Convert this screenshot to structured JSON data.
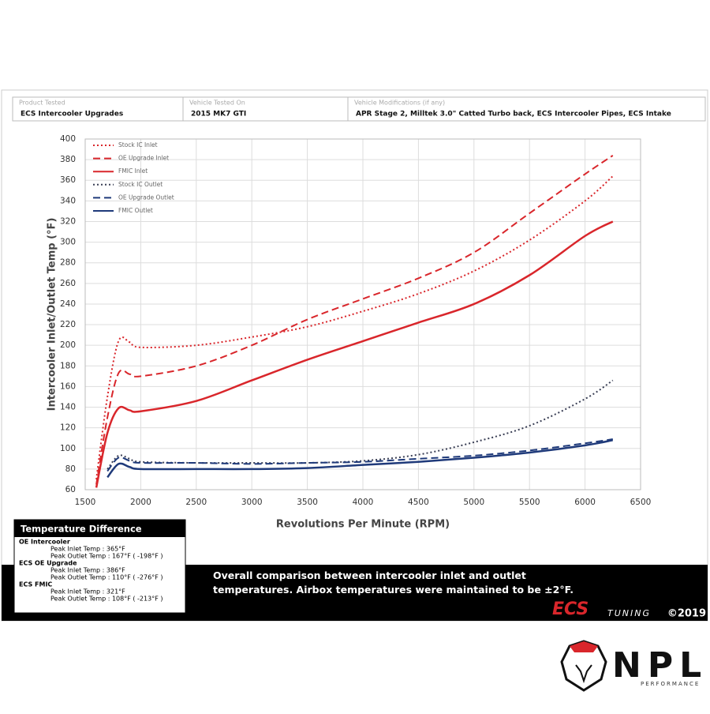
{
  "header": {
    "fields": [
      {
        "label": "Product Tested",
        "value": "ECS Intercooler Upgrades"
      },
      {
        "label": "Vehicle Tested On",
        "value": "2015 MK7 GTI"
      },
      {
        "label": "Vehicle Modifications (if any)",
        "value": "APR Stage 2, Milltek 3.0\" Catted Turbo back, ECS Intercooler Pipes, ECS Intake"
      }
    ]
  },
  "chart_data": {
    "type": "line",
    "x_label": "Revolutions Per Minute (RPM)",
    "y_label": "Intercooler Inlet/Outlet Temp (°F)",
    "x": [
      1600,
      1700,
      1800,
      1900,
      2000,
      2500,
      3000,
      3500,
      4000,
      4500,
      5000,
      5500,
      6000,
      6250
    ],
    "xlim": [
      1500,
      6500
    ],
    "xticks": [
      1500,
      2000,
      2500,
      3000,
      3500,
      4000,
      4500,
      5000,
      5500,
      6000,
      6500
    ],
    "ylim": [
      60,
      400
    ],
    "yticks": [
      60,
      80,
      100,
      120,
      140,
      160,
      180,
      200,
      220,
      240,
      260,
      280,
      300,
      320,
      340,
      360,
      380,
      400
    ],
    "grid": true,
    "legend": "top-left",
    "series": [
      {
        "name": "Stock IC Inlet",
        "color": "#d9262b",
        "dash": "dotted",
        "values": [
          70,
          150,
          204,
          203,
          198,
          200,
          208,
          218,
          233,
          250,
          272,
          302,
          340,
          364
        ]
      },
      {
        "name": "OE Upgrade Inlet",
        "color": "#d9262b",
        "dash": "dashed",
        "values": [
          65,
          130,
          173,
          172,
          170,
          180,
          200,
          225,
          245,
          265,
          290,
          328,
          366,
          384
        ]
      },
      {
        "name": "FMIC Inlet",
        "color": "#d9262b",
        "dash": "solid",
        "values": [
          62,
          115,
          139,
          137,
          136,
          146,
          166,
          186,
          204,
          222,
          240,
          268,
          306,
          320
        ]
      },
      {
        "name": "Stock IC Outlet",
        "color": "#3a3f55",
        "dash": "dotted",
        "values": [
          null,
          80,
          93,
          90,
          87,
          86,
          86,
          86,
          88,
          94,
          106,
          122,
          148,
          166
        ]
      },
      {
        "name": "OE Upgrade Outlet",
        "color": "#1f3a7a",
        "dash": "dashed",
        "values": [
          null,
          78,
          91,
          88,
          86,
          86,
          85,
          86,
          87,
          90,
          93,
          98,
          105,
          109
        ]
      },
      {
        "name": "FMIC Outlet",
        "color": "#1f3a7a",
        "dash": "solid",
        "values": [
          null,
          72,
          85,
          82,
          80,
          80,
          80,
          81,
          84,
          87,
          91,
          96,
          103,
          108
        ]
      }
    ]
  },
  "temperature_box": {
    "title": "Temperature Difference",
    "groups": [
      {
        "name": "OE Intercooler",
        "lines": [
          "Peak Inlet Temp : 365°F",
          "Peak Outlet Temp : 167°F ( -198°F )"
        ]
      },
      {
        "name": "ECS OE Upgrade",
        "lines": [
          "Peak Inlet Temp : 386°F",
          "Peak Outlet Temp : 110°F ( -276°F )"
        ]
      },
      {
        "name": "ECS FMIC",
        "lines": [
          "Peak Inlet Temp : 321°F",
          "Peak Outlet Temp : 108°F ( -213°F )"
        ]
      }
    ]
  },
  "caption": "Overall comparison between intercooler inlet and outlet temperatures. Airbox temperatures were maintained to be ±2°F.",
  "footer": {
    "brand": "ECS",
    "brand_sub": "TUNING",
    "copyright": "©2019"
  },
  "logo": {
    "name": "NPL",
    "sub": "PERFORMANCE"
  }
}
